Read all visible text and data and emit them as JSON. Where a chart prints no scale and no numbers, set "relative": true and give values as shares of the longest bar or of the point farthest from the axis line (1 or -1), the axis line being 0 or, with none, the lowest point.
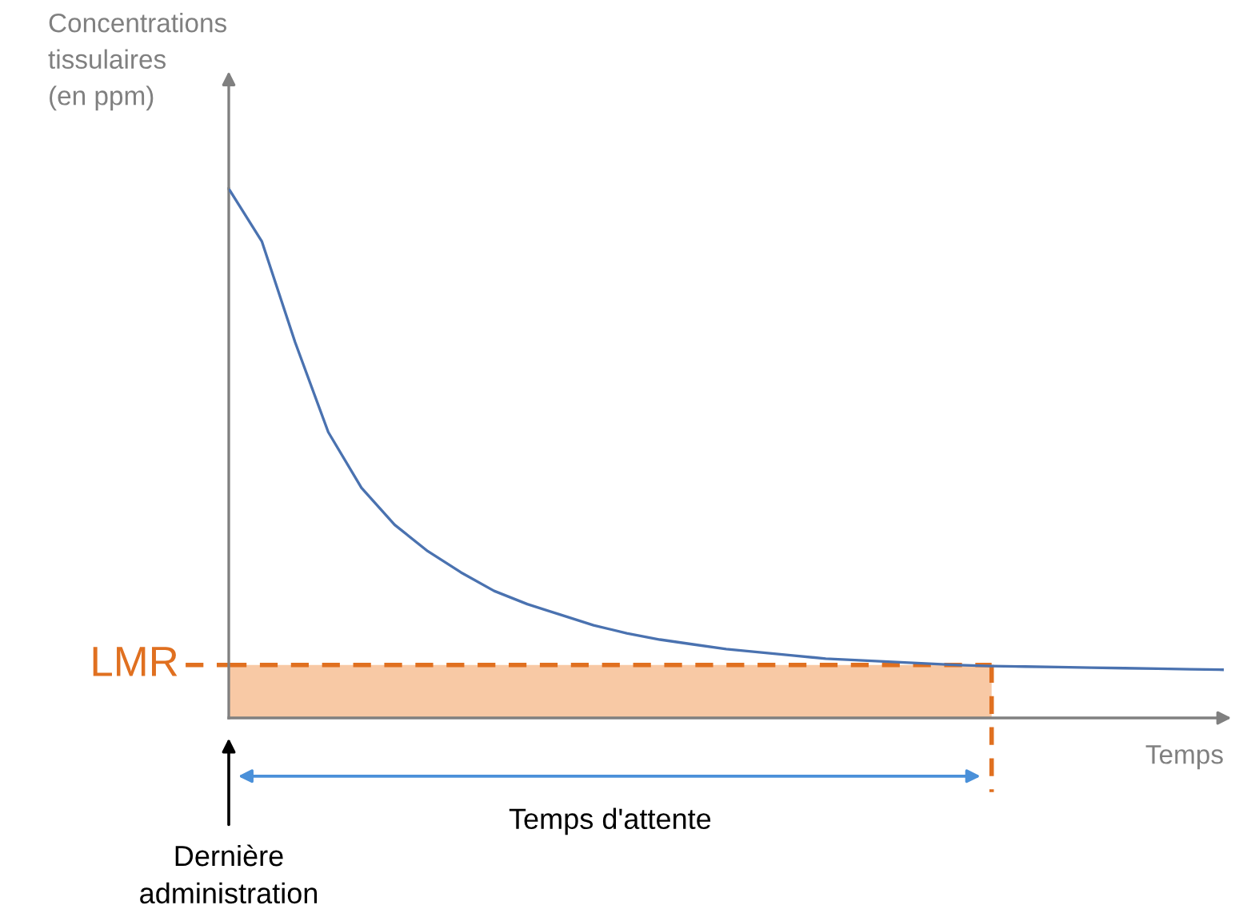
{
  "chart_data": {
    "type": "line",
    "relative": true,
    "xlabel": "Temps",
    "ylabel": "Concentrations\ntissulaires\n(en ppm)",
    "categories": [
      null,
      null,
      null,
      null,
      null,
      null,
      null,
      null,
      null,
      null,
      null,
      null,
      null,
      null,
      null,
      null,
      null,
      null,
      null,
      null,
      null,
      null,
      null,
      null,
      null,
      null,
      null,
      null,
      null,
      null,
      null
    ],
    "series": [
      {
        "color": "#4a72b0",
        "line_style": "solid",
        "values": [
          1.0,
          0.9,
          0.71,
          0.54,
          0.435,
          0.365,
          0.315,
          0.275,
          0.24,
          0.215,
          0.195,
          0.175,
          0.16,
          0.148,
          0.139,
          0.13,
          0.124,
          0.118,
          0.112,
          0.109,
          0.106,
          0.103,
          0.1,
          0.098,
          0.097,
          0.096,
          0.095,
          0.094,
          0.093,
          0.092,
          0.091
        ]
      },
      {
        "type": "area",
        "color": "#f8c9a5",
        "line_style": "dashed",
        "values": [
          0.1,
          0.1,
          0.1,
          0.1,
          0.1,
          0.1,
          0.1,
          0.1,
          0.1,
          0.1,
          0.1,
          0.1,
          0.1,
          0.1,
          0.1,
          0.1,
          0.1,
          0.1,
          0.1,
          0.1,
          0.1,
          0.1,
          0.1,
          0.1,
          null,
          null,
          null,
          null,
          null,
          null,
          null
        ]
      }
    ],
    "ref_lines": [
      {
        "axis": "y",
        "value": 0.1,
        "label": "LMR",
        "color": "#e07020",
        "line_style": "dashed"
      }
    ],
    "annotations": [
      "Temps d'attente",
      "Dernière administration"
    ]
  }
}
